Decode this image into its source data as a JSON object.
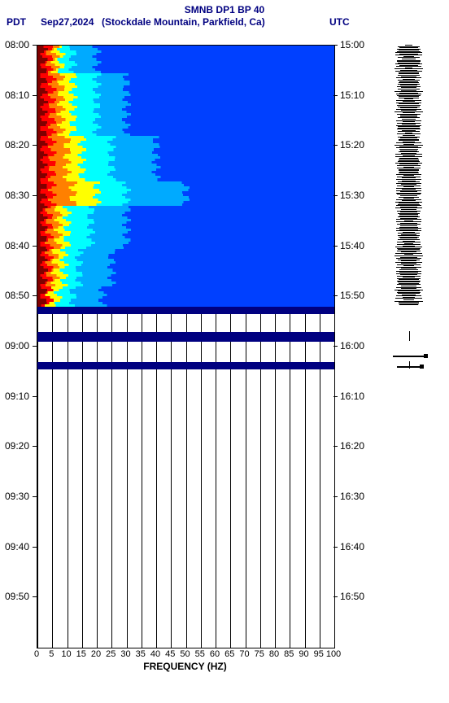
{
  "title": {
    "line1": "SMNB DP1 BP 40",
    "pdt": "PDT",
    "date": "Sep27,2024",
    "location": "(Stockdale Mountain, Parkfield, Ca)",
    "utc": "UTC",
    "title_fontsize": 12,
    "title_color": "#000080"
  },
  "axes": {
    "x_label": "FREQUENCY (HZ)",
    "x_ticks": [
      "0",
      "5",
      "10",
      "15",
      "20",
      "25",
      "30",
      "35",
      "40",
      "45",
      "50",
      "55",
      "60",
      "65",
      "70",
      "75",
      "80",
      "85",
      "90",
      "95",
      "100"
    ],
    "y_left_ticks": [
      "08:00",
      "08:10",
      "08:20",
      "08:30",
      "08:40",
      "08:50",
      "09:00",
      "09:10",
      "09:20",
      "09:30",
      "09:40",
      "09:50"
    ],
    "y_right_ticks": [
      "15:00",
      "15:10",
      "15:20",
      "15:30",
      "15:40",
      "15:50",
      "16:00",
      "16:10",
      "16:20",
      "16:30",
      "16:40",
      "16:50"
    ],
    "label_fontsize": 12,
    "font_family": "Arial"
  },
  "plot": {
    "type": "spectrogram",
    "background_color": "#ffffff",
    "grid_color": "#000000",
    "xlim": [
      0,
      100
    ],
    "time_range_minutes": 120,
    "data_end_row_minutes": 52,
    "band1_start_minutes": 57,
    "band1_end_minutes": 59,
    "band2_start_minutes": 63,
    "band2_end_minutes": 64.5,
    "colormap_stops": [
      "#800000",
      "#ff0000",
      "#ff8000",
      "#ffff00",
      "#00ffff",
      "#00aaff",
      "#0040ff",
      "#0000a0"
    ],
    "representative_rows": [
      {
        "t": 0,
        "stops": [
          [
            "#800000",
            2
          ],
          [
            "#ff0000",
            4
          ],
          [
            "#ff8000",
            6
          ],
          [
            "#ffff00",
            8
          ],
          [
            "#00ffff",
            12
          ],
          [
            "#00aaff",
            20
          ],
          [
            "#0040ff",
            100
          ]
        ]
      },
      {
        "t": 10,
        "stops": [
          [
            "#800000",
            2
          ],
          [
            "#ff0000",
            5
          ],
          [
            "#ff8000",
            8
          ],
          [
            "#ffff00",
            12
          ],
          [
            "#00ffff",
            20
          ],
          [
            "#00aaff",
            30
          ],
          [
            "#0040ff",
            100
          ]
        ]
      },
      {
        "t": 25,
        "stops": [
          [
            "#800000",
            2
          ],
          [
            "#ff0000",
            5
          ],
          [
            "#ff8000",
            10
          ],
          [
            "#ffff00",
            15
          ],
          [
            "#00ffff",
            25
          ],
          [
            "#00aaff",
            40
          ],
          [
            "#0040ff",
            100
          ]
        ]
      },
      {
        "t": 28,
        "stops": [
          [
            "#800000",
            2
          ],
          [
            "#ff0000",
            5
          ],
          [
            "#ff8000",
            12
          ],
          [
            "#ffff00",
            20
          ],
          [
            "#00ffff",
            30
          ],
          [
            "#00aaff",
            50
          ],
          [
            "#0040ff",
            100
          ]
        ]
      },
      {
        "t": 35,
        "stops": [
          [
            "#800000",
            2
          ],
          [
            "#ff0000",
            4
          ],
          [
            "#ff8000",
            7
          ],
          [
            "#ffff00",
            10
          ],
          [
            "#00ffff",
            18
          ],
          [
            "#00aaff",
            30
          ],
          [
            "#0040ff",
            100
          ]
        ]
      },
      {
        "t": 45,
        "stops": [
          [
            "#800000",
            2
          ],
          [
            "#ff0000",
            4
          ],
          [
            "#ff8000",
            6
          ],
          [
            "#ffff00",
            9
          ],
          [
            "#00ffff",
            14
          ],
          [
            "#00aaff",
            25
          ],
          [
            "#0040ff",
            100
          ]
        ]
      },
      {
        "t": 50,
        "stops": [
          [
            "#800000",
            2
          ],
          [
            "#ff0000",
            4
          ],
          [
            "#ffff00",
            7
          ],
          [
            "#00ffff",
            12
          ],
          [
            "#00aaff",
            22
          ],
          [
            "#0040ff",
            100
          ]
        ]
      }
    ]
  },
  "seismogram": {
    "baseline_segments": [
      [
        0,
        52
      ],
      [
        57,
        59
      ],
      [
        63,
        64.5
      ]
    ],
    "high_amp_range": [
      0,
      52
    ],
    "events": [
      {
        "t": 62,
        "amp": 40
      },
      {
        "t": 64,
        "amp": 30
      }
    ],
    "color": "#000000"
  }
}
